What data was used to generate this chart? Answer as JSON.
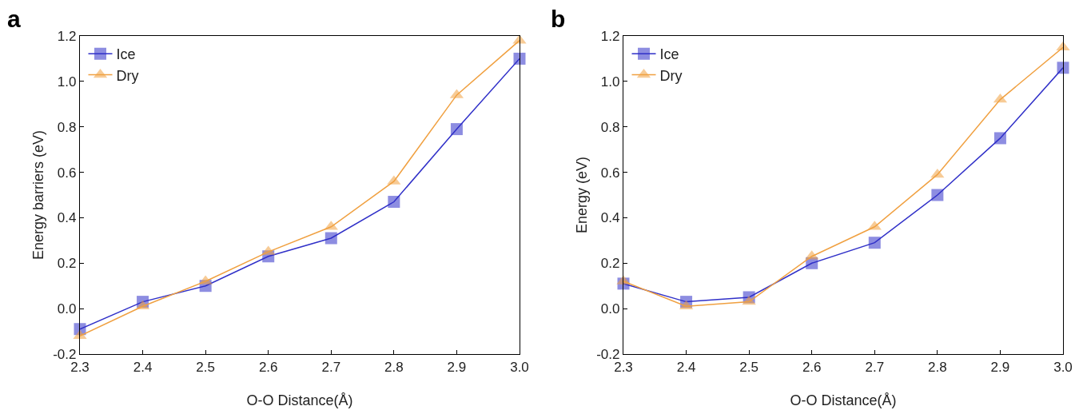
{
  "chart_data": [
    {
      "type": "line",
      "annotations": [
        "a"
      ],
      "xlabel": "O-O Distance(Å)",
      "ylabel": "Energy barriers (eV)",
      "x": [
        2.3,
        2.4,
        2.5,
        2.6,
        2.7,
        2.8,
        2.9,
        3.0
      ],
      "series": [
        {
          "name": "Ice",
          "color": "#3030c8",
          "marker": "square",
          "values": [
            -0.09,
            0.03,
            0.1,
            0.23,
            0.31,
            0.47,
            0.79,
            1.1
          ]
        },
        {
          "name": "Dry",
          "color": "#f0a040",
          "marker": "triangle",
          "values": [
            -0.12,
            0.01,
            0.12,
            0.25,
            0.36,
            0.56,
            0.94,
            1.18
          ]
        }
      ],
      "xlim": [
        2.3,
        3.0
      ],
      "xticks": [
        {
          "value": 2.3,
          "label": "2.3"
        },
        {
          "value": 2.4,
          "label": "2.4"
        },
        {
          "value": 2.5,
          "label": "2.5"
        },
        {
          "value": 2.6,
          "label": "2.6"
        },
        {
          "value": 2.7,
          "label": "2.7"
        },
        {
          "value": 2.8,
          "label": "2.8"
        },
        {
          "value": 2.9,
          "label": "2.9"
        },
        {
          "value": 3.0,
          "label": "3.0"
        }
      ],
      "ylim": [
        -0.2,
        1.2
      ],
      "yticks": [
        {
          "value": -0.2,
          "label": "-0.2"
        },
        {
          "value": 0,
          "label": "0.0"
        },
        {
          "value": 0.2,
          "label": "0.2"
        },
        {
          "value": 0.4,
          "label": "0.4"
        },
        {
          "value": 0.6,
          "label": "0.6"
        },
        {
          "value": 0.8,
          "label": "0.8"
        },
        {
          "value": 1.0,
          "label": "1.0"
        },
        {
          "value": 1.2,
          "label": "1.2"
        }
      ],
      "grid": false,
      "legend": "top left",
      "line_style": "solid"
    },
    {
      "type": "line",
      "annotations": [
        "b"
      ],
      "xlabel": "O-O Distance(Å)",
      "ylabel": "Energy (eV)",
      "x": [
        2.3,
        2.4,
        2.5,
        2.6,
        2.7,
        2.8,
        2.9,
        3.0
      ],
      "series": [
        {
          "name": "Ice",
          "color": "#3030c8",
          "marker": "square",
          "values": [
            0.11,
            0.03,
            0.05,
            0.2,
            0.29,
            0.5,
            0.75,
            1.06
          ]
        },
        {
          "name": "Dry",
          "color": "#f0a040",
          "marker": "triangle",
          "values": [
            0.12,
            0.01,
            0.03,
            0.23,
            0.36,
            0.59,
            0.92,
            1.15
          ]
        }
      ],
      "xlim": [
        2.3,
        3.0
      ],
      "xticks": [
        {
          "value": 2.3,
          "label": "2.3"
        },
        {
          "value": 2.4,
          "label": "2.4"
        },
        {
          "value": 2.5,
          "label": "2.5"
        },
        {
          "value": 2.6,
          "label": "2.6"
        },
        {
          "value": 2.7,
          "label": "2.7"
        },
        {
          "value": 2.8,
          "label": "2.8"
        },
        {
          "value": 2.9,
          "label": "2.9"
        },
        {
          "value": 3.0,
          "label": "3.0"
        }
      ],
      "ylim": [
        -0.2,
        1.2
      ],
      "yticks": [
        {
          "value": -0.2,
          "label": "-0.2"
        },
        {
          "value": 0,
          "label": "0.0"
        },
        {
          "value": 0.2,
          "label": "0.2"
        },
        {
          "value": 0.4,
          "label": "0.4"
        },
        {
          "value": 0.6,
          "label": "0.6"
        },
        {
          "value": 0.8,
          "label": "0.8"
        },
        {
          "value": 1.0,
          "label": "1.0"
        },
        {
          "value": 1.2,
          "label": "1.2"
        }
      ],
      "grid": false,
      "legend": "top left",
      "line_style": "solid"
    }
  ]
}
